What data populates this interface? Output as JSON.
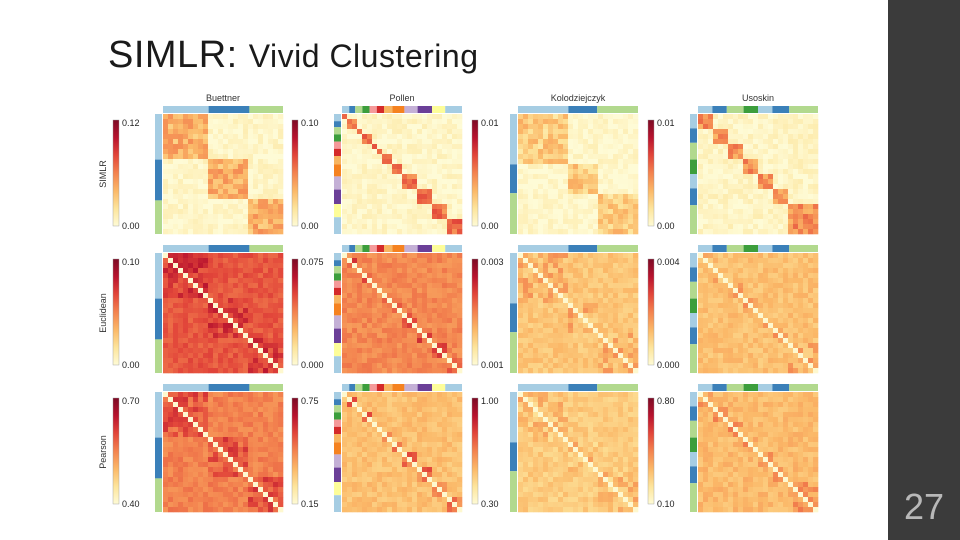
{
  "slide": {
    "title_main": "SIMLR:",
    "title_sub": "Vivid Clustering",
    "page_number": "27"
  },
  "figure": {
    "columns": [
      "Buettner",
      "Pollen",
      "Kolodziejczyk",
      "Usoskin"
    ],
    "rows": [
      "SIMLR",
      "Euclidean",
      "Pearson"
    ],
    "colorbar_ranges": [
      [
        [
          "0.12",
          "0.00"
        ],
        [
          "0.10",
          "0.00"
        ],
        [
          "0.01",
          "0.00"
        ],
        [
          "0.01",
          "0.00"
        ]
      ],
      [
        [
          "0.10",
          "0.00"
        ],
        [
          "0.075",
          "0.000"
        ],
        [
          "0.003",
          "0.001"
        ],
        [
          "0.004",
          "0.000"
        ]
      ],
      [
        [
          "0.70",
          "0.40"
        ],
        [
          "0.75",
          "0.15"
        ],
        [
          "1.00",
          "0.30"
        ],
        [
          "0.80",
          "0.10"
        ]
      ]
    ],
    "cluster_strip_colors": {
      "Buettner": [
        "#a6cde3",
        "#3b80b9",
        "#b2d98e"
      ],
      "Pollen": [
        "#a6cde3",
        "#3b80b9",
        "#b2d98e",
        "#3c9e3c",
        "#f59a9a",
        "#d42a2a",
        "#f7b560",
        "#f58220",
        "#c4b0d6",
        "#6b3f98",
        "#fdfd99"
      ],
      "Kolodziejczyk": [
        "#a6cde3",
        "#3b80b9",
        "#b2d98e"
      ],
      "Usoskin": [
        "#a6cde3",
        "#3b80b9",
        "#b2d98e",
        "#3c9e3c"
      ]
    },
    "palette": [
      "#fefbd6",
      "#fde49b",
      "#fbb868",
      "#f3834f",
      "#e2463a",
      "#b8132e",
      "#7d0b25"
    ]
  }
}
